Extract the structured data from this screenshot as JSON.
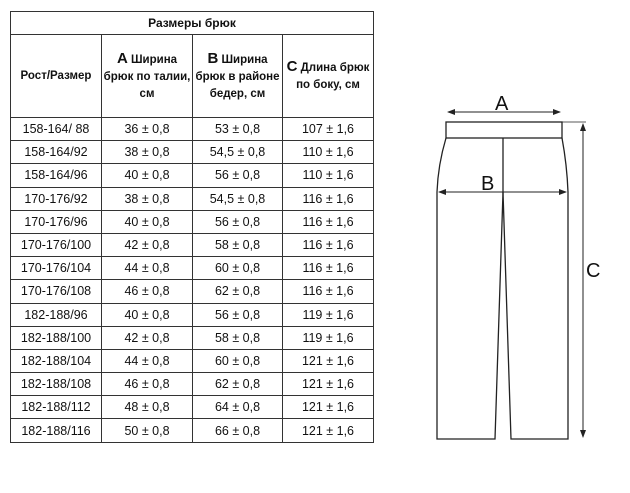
{
  "table": {
    "title": "Размеры брюк",
    "headers": [
      {
        "letter": "",
        "text": "Рост/Размер"
      },
      {
        "letter": "А",
        "text": "Ширина брюк по талии, см"
      },
      {
        "letter": "В",
        "text": "Ширина брюк в районе бедер, см"
      },
      {
        "letter": "С",
        "text": "Длина брюк по боку, см"
      }
    ],
    "rows": [
      [
        "158-164/ 88",
        "36 ± 0,8",
        "53 ± 0,8",
        "107 ± 1,6"
      ],
      [
        "158-164/92",
        "38 ± 0,8",
        "54,5 ± 0,8",
        "110 ± 1,6"
      ],
      [
        "158-164/96",
        "40 ± 0,8",
        "56 ± 0,8",
        "110 ± 1,6"
      ],
      [
        "170-176/92",
        "38 ± 0,8",
        "54,5 ± 0,8",
        "116 ± 1,6"
      ],
      [
        "170-176/96",
        "40 ± 0,8",
        "56 ± 0,8",
        "116 ± 1,6"
      ],
      [
        "170-176/100",
        "42 ± 0,8",
        "58 ± 0,8",
        "116 ± 1,6"
      ],
      [
        "170-176/104",
        "44 ± 0,8",
        "60 ± 0,8",
        "116 ± 1,6"
      ],
      [
        "170-176/108",
        "46 ± 0,8",
        "62 ± 0,8",
        "116 ± 1,6"
      ],
      [
        "182-188/96",
        "40 ± 0,8",
        "56 ± 0,8",
        "119 ± 1,6"
      ],
      [
        "182-188/100",
        "42 ± 0,8",
        "58 ± 0,8",
        "119 ± 1,6"
      ],
      [
        "182-188/104",
        "44 ± 0,8",
        "60 ± 0,8",
        "121 ± 1,6"
      ],
      [
        "182-188/108",
        "46 ± 0,8",
        "62 ± 0,8",
        "121 ± 1,6"
      ],
      [
        "182-188/112",
        "48 ± 0,8",
        "64 ± 0,8",
        "121 ± 1,6"
      ],
      [
        "182-188/116",
        "50 ± 0,8",
        "66 ± 0,8",
        "121 ± 1,6"
      ]
    ]
  },
  "diagram": {
    "label_a": "A",
    "label_b": "B",
    "label_c": "C"
  }
}
